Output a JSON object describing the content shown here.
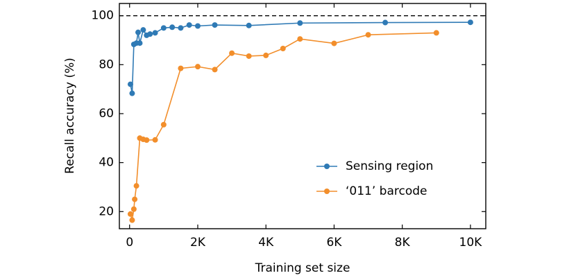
{
  "chart_data": {
    "type": "line",
    "xlabel": "Training set size",
    "ylabel": "Recall  accuracy  (%)",
    "xlim": [
      -300,
      10450
    ],
    "ylim": [
      13,
      105
    ],
    "xticks": [
      {
        "value": 0,
        "label": "0"
      },
      {
        "value": 2000,
        "label": "2K"
      },
      {
        "value": 4000,
        "label": "4K"
      },
      {
        "value": 6000,
        "label": "6K"
      },
      {
        "value": 8000,
        "label": "8K"
      },
      {
        "value": 10000,
        "label": "10K"
      }
    ],
    "yticks": [
      20,
      40,
      60,
      80,
      100
    ],
    "reference_line": 100,
    "legend": "lower right",
    "series": [
      {
        "name": "Sensing region",
        "color": "#2f7ab5",
        "x": [
          25,
          75,
          125,
          200,
          250,
          300,
          400,
          500,
          600,
          750,
          1000,
          1250,
          1500,
          1750,
          2000,
          2500,
          3500,
          5000,
          7500,
          10000
        ],
        "values": [
          72,
          68.3,
          88.3,
          88.8,
          93.2,
          88.8,
          94.2,
          92,
          92.5,
          93,
          95,
          95.3,
          95,
          96.2,
          95.8,
          96.2,
          96,
          97,
          97.2,
          97.3
        ]
      },
      {
        "name": "‘011’ barcode",
        "color": "#f28e2b",
        "x": [
          25,
          75,
          125,
          150,
          200,
          300,
          400,
          500,
          750,
          1000,
          1500,
          2000,
          2500,
          3000,
          3500,
          4000,
          4500,
          5000,
          6000,
          7000,
          9000
        ],
        "values": [
          19,
          16.5,
          21,
          25,
          30.5,
          50,
          49.5,
          49.2,
          49.3,
          55.5,
          78.5,
          79.2,
          78,
          84.7,
          83.5,
          83.8,
          86.6,
          90.5,
          88.7,
          92.2,
          93
        ]
      }
    ]
  }
}
